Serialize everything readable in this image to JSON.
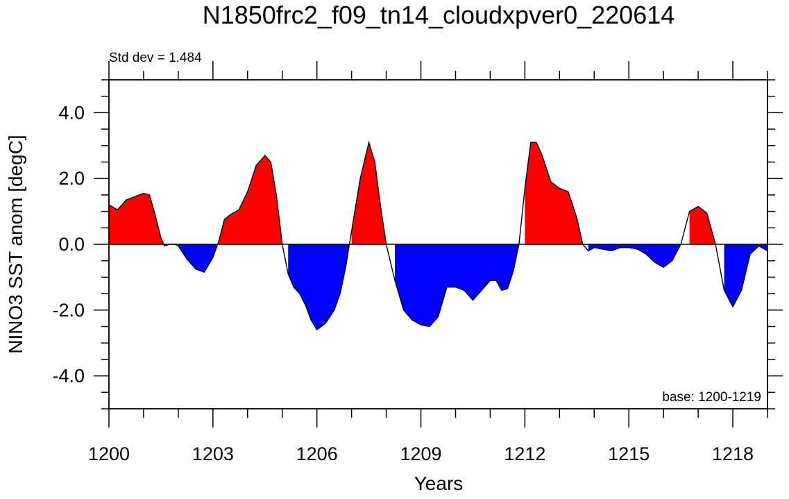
{
  "chart_data": {
    "type": "area",
    "title": "N1850frc2_f09_tn14_cloudxpver0_220614",
    "left_annotation": "Std dev = 1.484",
    "right_annotation": "base: 1200-1219",
    "xlabel": "Years",
    "ylabel": "NINO3 SST anom [degC]",
    "xlim": [
      1200,
      1219
    ],
    "ylim": [
      -5,
      5
    ],
    "xticks": [
      1200,
      1203,
      1206,
      1209,
      1212,
      1215,
      1218
    ],
    "xtick_labels": [
      "1200",
      "1203",
      "1206",
      "1209",
      "1212",
      "1215",
      "1218"
    ],
    "yticks": [
      4,
      2,
      0,
      -2,
      -4
    ],
    "ytick_labels": [
      "4.0",
      "2.0",
      "0.0",
      "-2.0",
      "-4.0"
    ],
    "grid": false,
    "positive_color": "#ff0000",
    "negative_color": "#0000ff",
    "line_color": "#000000",
    "series": [
      {
        "x": [
          1200.0,
          1200.25,
          1200.5,
          1200.75,
          1201.0,
          1201.17,
          1201.33,
          1201.5,
          1201.6,
          1201.75,
          1201.9,
          1202.0,
          1202.25,
          1202.5,
          1202.75,
          1203.0,
          1203.17,
          1203.33,
          1203.5,
          1203.75,
          1204.0,
          1204.25,
          1204.5,
          1204.67,
          1204.83,
          1205.0,
          1205.17,
          1205.33,
          1205.5,
          1205.67,
          1205.83,
          1206.0,
          1206.25,
          1206.5,
          1206.67,
          1206.83,
          1207.0,
          1207.25,
          1207.5,
          1207.67,
          1207.83,
          1208.0,
          1208.25,
          1208.5,
          1208.75,
          1209.0,
          1209.25,
          1209.5,
          1209.75,
          1210.0,
          1210.25,
          1210.5,
          1210.75,
          1211.0,
          1211.17,
          1211.33,
          1211.5,
          1211.67,
          1211.83,
          1212.0,
          1212.17,
          1212.33,
          1212.5,
          1212.75,
          1213.0,
          1213.25,
          1213.5,
          1213.67,
          1213.83,
          1214.0,
          1214.25,
          1214.5,
          1214.75,
          1215.0,
          1215.25,
          1215.5,
          1215.75,
          1216.0,
          1216.25,
          1216.5,
          1216.75,
          1217.0,
          1217.25,
          1217.5,
          1217.75,
          1218.0,
          1218.25,
          1218.5,
          1218.75,
          1219.0
        ],
        "values": [
          1.2,
          1.05,
          1.35,
          1.45,
          1.55,
          1.5,
          0.9,
          0.2,
          -0.05,
          0.0,
          0.0,
          -0.05,
          -0.45,
          -0.75,
          -0.85,
          -0.4,
          0.1,
          0.75,
          0.9,
          1.05,
          1.6,
          2.4,
          2.7,
          2.5,
          1.5,
          0.0,
          -0.9,
          -1.3,
          -1.5,
          -1.85,
          -2.3,
          -2.6,
          -2.4,
          -2.0,
          -1.5,
          -0.7,
          0.4,
          2.0,
          3.1,
          2.5,
          1.2,
          0.0,
          -1.1,
          -2.0,
          -2.3,
          -2.45,
          -2.5,
          -2.2,
          -1.3,
          -1.3,
          -1.4,
          -1.7,
          -1.4,
          -1.1,
          -1.1,
          -1.4,
          -1.35,
          -0.8,
          0.0,
          1.7,
          3.1,
          3.1,
          2.7,
          1.9,
          1.7,
          1.6,
          0.8,
          0.0,
          -0.2,
          -0.1,
          -0.15,
          -0.2,
          -0.1,
          -0.1,
          -0.15,
          -0.3,
          -0.55,
          -0.7,
          -0.5,
          0.0,
          1.0,
          1.15,
          0.95,
          0.0,
          -1.4,
          -1.9,
          -1.4,
          -0.3,
          -0.05,
          -0.2
        ]
      }
    ]
  }
}
